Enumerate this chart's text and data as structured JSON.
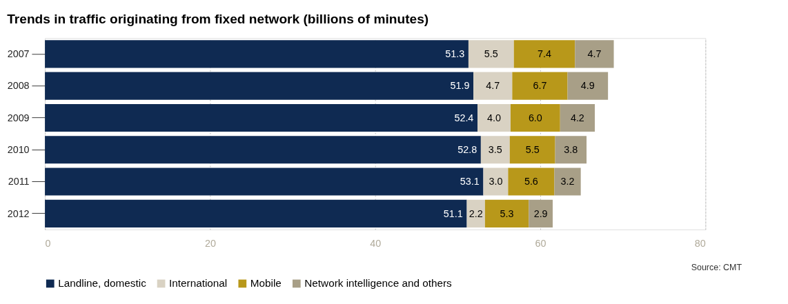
{
  "chart_data": {
    "type": "bar",
    "orientation": "horizontal",
    "stacked": true,
    "title": "Trends in traffic originating from fixed network (billions of minutes)",
    "categories": [
      "2007",
      "2008",
      "2009",
      "2010",
      "2011",
      "2012"
    ],
    "series": [
      {
        "name": "Landline, domestic",
        "color": "#0f2a52",
        "values": [
          51.3,
          51.9,
          52.4,
          52.8,
          53.1,
          51.1
        ],
        "value_labels": [
          "51.3",
          "51.9",
          "52.4",
          "52.8",
          "53.1",
          "51.1"
        ]
      },
      {
        "name": "International",
        "color": "#d9d2c3",
        "values": [
          5.5,
          4.7,
          4.0,
          3.5,
          3.0,
          2.2
        ],
        "value_labels": [
          "5.5",
          "4.7",
          "4.0",
          "3.5",
          "3.0",
          "2.2"
        ]
      },
      {
        "name": "Mobile",
        "color": "#b8981a",
        "values": [
          7.4,
          6.7,
          6.0,
          5.5,
          5.6,
          5.3
        ],
        "value_labels": [
          "7.4",
          "6.7",
          "6.0",
          "5.5",
          "5.6",
          "5.3"
        ]
      },
      {
        "name": "Network intelligence and others",
        "color": "#a89f87",
        "values": [
          4.7,
          4.9,
          4.2,
          3.8,
          3.2,
          2.9
        ],
        "value_labels": [
          "4.7",
          "4.9",
          "4.2",
          "3.8",
          "3.2",
          "2.9"
        ]
      }
    ],
    "xlim": [
      0,
      80
    ],
    "xticks": [
      0,
      20,
      40,
      60,
      80
    ],
    "grid": "x",
    "legend": "bottom",
    "annotations": [
      "Source: CMT"
    ]
  }
}
